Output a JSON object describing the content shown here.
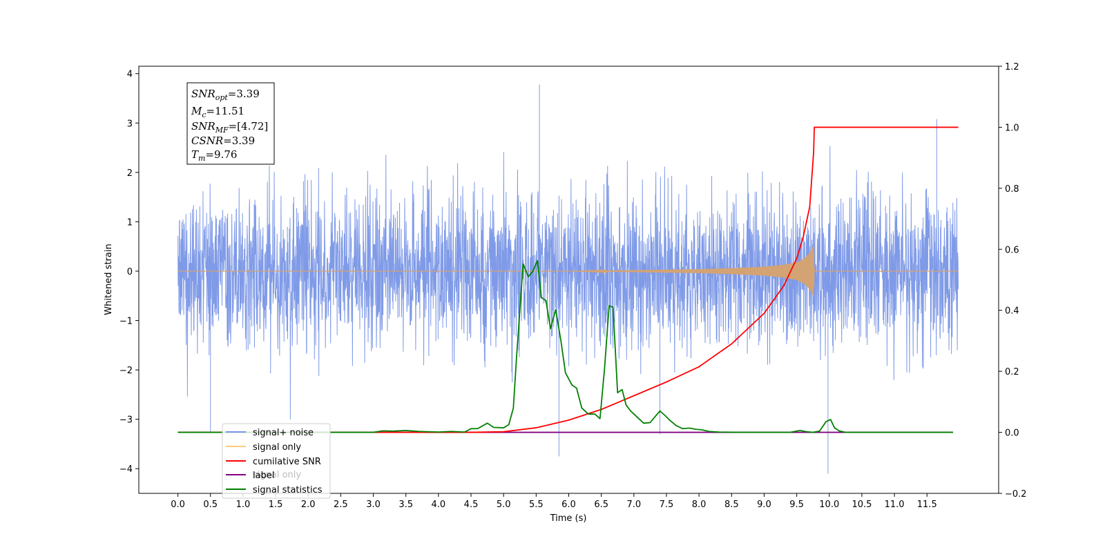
{
  "chart_data": {
    "type": "line",
    "xlabel": "Time (s)",
    "ylabel_left": "Whitened strain",
    "ylabel_right": "",
    "xlim": [
      -0.6,
      12.6
    ],
    "ylim_left": [
      -4.5,
      4.15
    ],
    "ylim_right": [
      -0.2,
      1.2
    ],
    "x_ticks": [
      "0.0",
      "0.5",
      "1.0",
      "1.5",
      "2.0",
      "2.5",
      "3.0",
      "3.5",
      "4.0",
      "4.5",
      "5.0",
      "5.5",
      "6.0",
      "6.5",
      "7.0",
      "7.5",
      "8.0",
      "8.5",
      "9.0",
      "9.5",
      "10.0",
      "10.5",
      "11.0",
      "11.5"
    ],
    "y_ticks_left": [
      "4",
      "3",
      "2",
      "1",
      "0",
      "−1",
      "−2",
      "−3",
      "−4"
    ],
    "y_ticks_right": [
      "1.2",
      "1.0",
      "0.8",
      "0.6",
      "0.4",
      "0.2",
      "0.0",
      "−0.2"
    ],
    "grid": false,
    "legend_position": "lower-left",
    "legend": [
      {
        "label": "signal+ noise",
        "color": "#7895e6"
      },
      {
        "label": "signal only",
        "color": "#ffcc77"
      },
      {
        "label": "cumilative SNR",
        "color": "#ff0000"
      },
      {
        "label": "label",
        "color": "#800080"
      },
      {
        "label": "signal statistics",
        "color": "#008000"
      }
    ],
    "legend_ghost_text": "signal only",
    "stats_box": {
      "snr_opt": {
        "var": "SNR",
        "sub": "opt",
        "value": "=3.39"
      },
      "mc": {
        "var": "M",
        "sub": "c",
        "value": "=11.51"
      },
      "snr_mf": {
        "var": "SNR",
        "sub": "MF",
        "value": "=[4.72]"
      },
      "csnr": {
        "var": "CSNR",
        "sub": "",
        "value": "=3.39"
      },
      "tm": {
        "var": "T",
        "sub": "m",
        "value": "=9.76"
      }
    },
    "series": [
      {
        "name": "signal+ noise",
        "axis": "left",
        "color": "#7895e6",
        "x_range": [
          0.0,
          11.98
        ],
        "typical_amplitude": 2.1,
        "peak_max": 3.78,
        "peak_min": -4.1,
        "notable_spikes": [
          [
            5.55,
            3.78
          ],
          [
            5.85,
            -3.75
          ],
          [
            9.98,
            -4.1
          ],
          [
            11.65,
            3.08
          ],
          [
            0.5,
            -3.25
          ],
          [
            7.4,
            -3.3
          ]
        ]
      },
      {
        "name": "signal only",
        "axis": "left",
        "color": "#d4a373",
        "x": [
          0.0,
          6.0,
          7.0,
          8.0,
          8.5,
          9.0,
          9.3,
          9.5,
          9.6,
          9.7,
          9.76,
          9.77,
          11.98
        ],
        "envelope": [
          0.0,
          0.0,
          0.02,
          0.04,
          0.06,
          0.09,
          0.13,
          0.18,
          0.24,
          0.36,
          0.52,
          0.0,
          0.0
        ]
      },
      {
        "name": "cumilative SNR",
        "axis": "right",
        "color": "#ff0000",
        "x": [
          0.0,
          4.5,
          5.0,
          5.5,
          6.0,
          6.5,
          7.0,
          7.5,
          8.0,
          8.5,
          9.0,
          9.3,
          9.5,
          9.6,
          9.7,
          9.76,
          9.77,
          11.98
        ],
        "y": [
          0.0,
          0.0,
          0.002,
          0.015,
          0.04,
          0.075,
          0.12,
          0.165,
          0.215,
          0.29,
          0.39,
          0.48,
          0.57,
          0.64,
          0.74,
          0.92,
          1.0,
          1.0
        ]
      },
      {
        "name": "label",
        "axis": "right",
        "color": "#800080",
        "x": [
          0.0,
          11.9
        ],
        "y": [
          0.0,
          0.0
        ]
      },
      {
        "name": "signal statistics",
        "axis": "right",
        "color": "#008000",
        "x": [
          0.0,
          3.0,
          3.15,
          3.3,
          3.5,
          3.7,
          4.0,
          4.2,
          4.4,
          4.5,
          4.6,
          4.75,
          4.85,
          5.0,
          5.08,
          5.15,
          5.2,
          5.3,
          5.38,
          5.45,
          5.52,
          5.58,
          5.65,
          5.72,
          5.8,
          5.88,
          5.95,
          6.05,
          6.12,
          6.2,
          6.3,
          6.4,
          6.48,
          6.55,
          6.62,
          6.68,
          6.75,
          6.82,
          6.88,
          6.95,
          7.05,
          7.15,
          7.25,
          7.32,
          7.4,
          7.48,
          7.55,
          7.65,
          7.75,
          7.85,
          7.95,
          8.05,
          8.15,
          8.3,
          8.6,
          9.0,
          9.4,
          9.55,
          9.65,
          9.75,
          9.85,
          9.95,
          10.02,
          10.08,
          10.15,
          10.25,
          10.4,
          11.9
        ],
        "y": [
          0.0,
          0.0,
          0.005,
          0.004,
          0.006,
          0.003,
          0.001,
          0.003,
          0.001,
          0.012,
          0.012,
          0.03,
          0.016,
          0.015,
          0.025,
          0.08,
          0.25,
          0.552,
          0.51,
          0.528,
          0.563,
          0.442,
          0.432,
          0.34,
          0.402,
          0.3,
          0.195,
          0.155,
          0.145,
          0.08,
          0.06,
          0.06,
          0.045,
          0.21,
          0.415,
          0.41,
          0.13,
          0.14,
          0.09,
          0.07,
          0.05,
          0.03,
          0.032,
          0.05,
          0.07,
          0.055,
          0.04,
          0.022,
          0.012,
          0.014,
          0.01,
          0.008,
          0.003,
          0.001,
          0.0,
          0.0,
          0.0,
          0.006,
          0.002,
          0.0,
          0.004,
          0.035,
          0.042,
          0.015,
          0.005,
          0.0,
          0.0,
          0.0
        ]
      }
    ]
  }
}
